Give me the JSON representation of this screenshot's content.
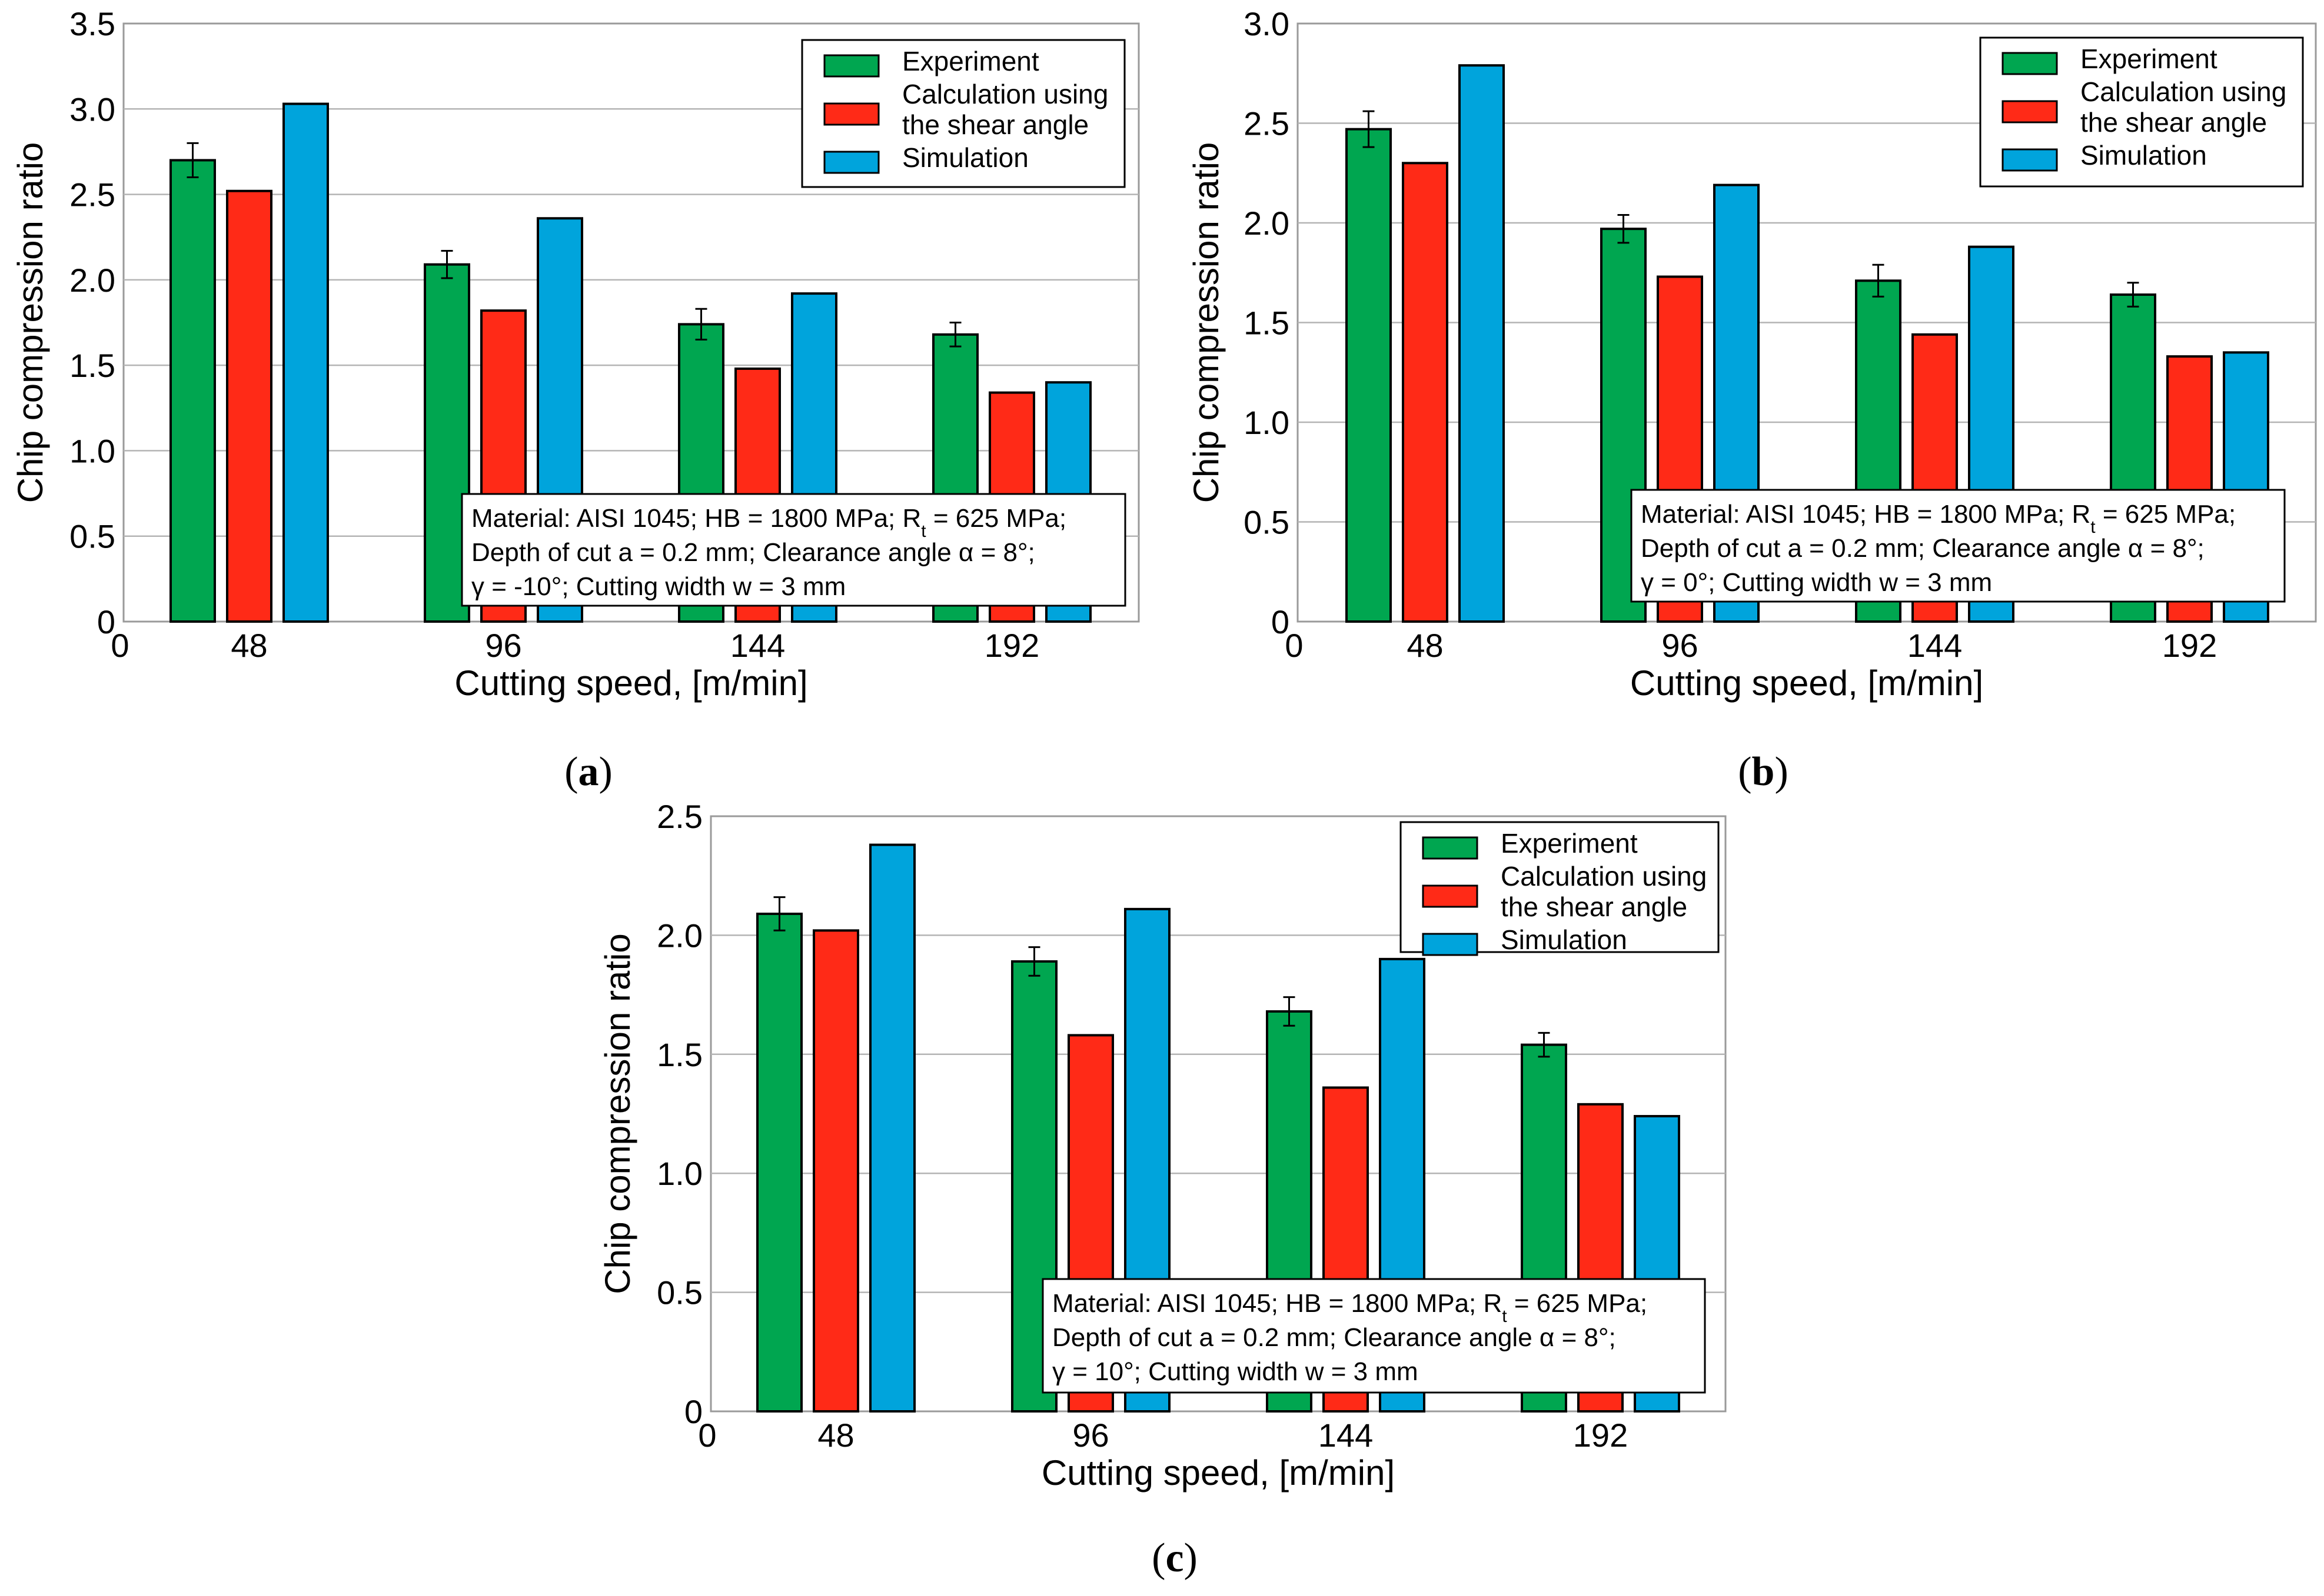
{
  "chart_data": [
    {
      "type": "bar",
      "panel_label": "a",
      "categories": [
        "48",
        "96",
        "144",
        "192"
      ],
      "origin_tick": "0",
      "series": [
        {
          "name": "Experiment",
          "color": "#00a650",
          "values": [
            2.7,
            2.09,
            1.74,
            1.68
          ],
          "errors": [
            0.1,
            0.08,
            0.09,
            0.07
          ]
        },
        {
          "name": "Calculation using the shear angle",
          "color": "#ff2a17",
          "values": [
            2.52,
            1.82,
            1.48,
            1.34
          ]
        },
        {
          "name": "Simulation",
          "color": "#00a4dc",
          "values": [
            3.03,
            2.36,
            1.92,
            1.4
          ]
        }
      ],
      "legend_lines": [
        [
          "Experiment"
        ],
        [
          "Calculation using",
          "the shear angle"
        ],
        [
          "Simulation"
        ]
      ],
      "xlabel": "Cutting speed, [m/min]",
      "ylabel": "Chip compression ratio",
      "ylim": [
        0,
        3.5
      ],
      "yticks": [
        "0",
        "0.5",
        "1.0",
        "1.5",
        "2.0",
        "2.5",
        "3.0",
        "3.5"
      ],
      "grid": true,
      "legend_position": "top-right",
      "annotation_lines": [
        "Material: AISI 1045; HB = 1800 MPa; R",
        "t",
        " = 625 MPa;",
        "Depth of cut a = 0.2 mm; Clearance angle α = 8°;",
        "γ = -10°; Cutting width w = 3 mm"
      ]
    },
    {
      "type": "bar",
      "panel_label": "b",
      "categories": [
        "48",
        "96",
        "144",
        "192"
      ],
      "origin_tick": "0",
      "series": [
        {
          "name": "Experiment",
          "color": "#00a650",
          "values": [
            2.47,
            1.97,
            1.71,
            1.64
          ],
          "errors": [
            0.09,
            0.07,
            0.08,
            0.06
          ]
        },
        {
          "name": "Calculation using the shear angle",
          "color": "#ff2a17",
          "values": [
            2.3,
            1.73,
            1.44,
            1.33
          ]
        },
        {
          "name": "Simulation",
          "color": "#00a4dc",
          "values": [
            2.79,
            2.19,
            1.88,
            1.35
          ]
        }
      ],
      "legend_lines": [
        [
          "Experiment"
        ],
        [
          "Calculation using",
          "the shear angle"
        ],
        [
          "Simulation"
        ]
      ],
      "xlabel": "Cutting speed, [m/min]",
      "ylabel": "Chip compression ratio",
      "ylim": [
        0,
        3.0
      ],
      "yticks": [
        "0",
        "0.5",
        "1.0",
        "1.5",
        "2.0",
        "2.5",
        "3.0"
      ],
      "grid": true,
      "legend_position": "top-right",
      "annotation_lines": [
        "Material: AISI 1045; HB = 1800 MPa; R",
        "t",
        " = 625 MPa;",
        "Depth of cut a = 0.2 mm; Clearance angle α = 8°;",
        "γ = 0°; Cutting width w = 3 mm"
      ]
    },
    {
      "type": "bar",
      "panel_label": "c",
      "categories": [
        "48",
        "96",
        "144",
        "192"
      ],
      "origin_tick": "0",
      "series": [
        {
          "name": "Experiment",
          "color": "#00a650",
          "values": [
            2.09,
            1.89,
            1.68,
            1.54
          ],
          "errors": [
            0.07,
            0.06,
            0.06,
            0.05
          ]
        },
        {
          "name": "Calculation using the shear angle",
          "color": "#ff2a17",
          "values": [
            2.02,
            1.58,
            1.36,
            1.29
          ]
        },
        {
          "name": "Simulation",
          "color": "#00a4dc",
          "values": [
            2.38,
            2.11,
            1.9,
            1.24
          ]
        }
      ],
      "legend_lines": [
        [
          "Experiment"
        ],
        [
          "Calculation using",
          "the shear angle"
        ],
        [
          "Simulation"
        ]
      ],
      "xlabel": "Cutting speed, [m/min]",
      "ylabel": "Chip compression ratio",
      "ylim": [
        0,
        2.5
      ],
      "yticks": [
        "0",
        "0.5",
        "1.0",
        "1.5",
        "2.0",
        "2.5"
      ],
      "grid": true,
      "legend_position": "top-right",
      "annotation_lines": [
        "Material: AISI 1045; HB = 1800 MPa; R",
        "t",
        " = 625 MPa;",
        "Depth of cut a = 0.2 mm; Clearance angle α = 8°;",
        "γ = 10°; Cutting width w = 3 mm"
      ]
    }
  ]
}
